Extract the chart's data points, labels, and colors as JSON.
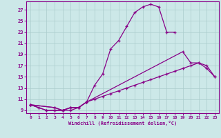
{
  "xlabel": "Windchill (Refroidissement éolien,°C)",
  "background_color": "#cce8e8",
  "line_color": "#880088",
  "grid_color": "#aacccc",
  "xlim": [
    -0.5,
    23.5
  ],
  "ylim": [
    8.5,
    28.5
  ],
  "xticks": [
    0,
    1,
    2,
    3,
    4,
    5,
    6,
    7,
    8,
    9,
    10,
    11,
    12,
    13,
    14,
    15,
    16,
    17,
    18,
    19,
    20,
    21,
    22,
    23
  ],
  "yticks": [
    9,
    11,
    13,
    15,
    17,
    19,
    21,
    23,
    25,
    27
  ],
  "curve1_x": [
    0,
    1,
    2,
    3,
    4,
    5,
    6,
    7,
    8,
    9,
    10,
    11,
    12,
    13,
    14,
    15,
    16,
    17,
    18
  ],
  "curve1_y": [
    10.0,
    9.5,
    9.0,
    9.0,
    9.0,
    9.5,
    9.5,
    10.5,
    13.5,
    15.5,
    20.0,
    21.5,
    24.0,
    26.5,
    27.5,
    28.0,
    27.5,
    23.0,
    23.0
  ],
  "curve2_x": [
    0,
    1,
    2,
    3,
    4,
    5,
    6,
    7,
    19,
    20,
    21,
    22,
    23
  ],
  "curve2_y": [
    10.0,
    9.5,
    9.0,
    9.0,
    9.0,
    9.5,
    9.5,
    10.5,
    19.5,
    17.5,
    17.5,
    16.5,
    15.0
  ],
  "curve3_x": [
    0,
    3,
    4,
    5,
    6,
    7,
    8,
    9,
    10,
    11,
    12,
    13,
    14,
    15,
    16,
    17,
    18,
    19,
    20,
    21,
    22,
    23
  ],
  "curve3_y": [
    10.0,
    9.5,
    9.0,
    9.5,
    9.5,
    10.5,
    11.0,
    11.5,
    12.0,
    12.5,
    13.0,
    13.5,
    14.0,
    14.5,
    15.0,
    15.5,
    16.0,
    16.5,
    17.0,
    17.5,
    17.0,
    15.0
  ],
  "curve4_x": [
    0,
    3,
    4,
    5,
    6,
    7
  ],
  "curve4_y": [
    10.0,
    9.5,
    9.0,
    9.0,
    9.5,
    10.5
  ]
}
